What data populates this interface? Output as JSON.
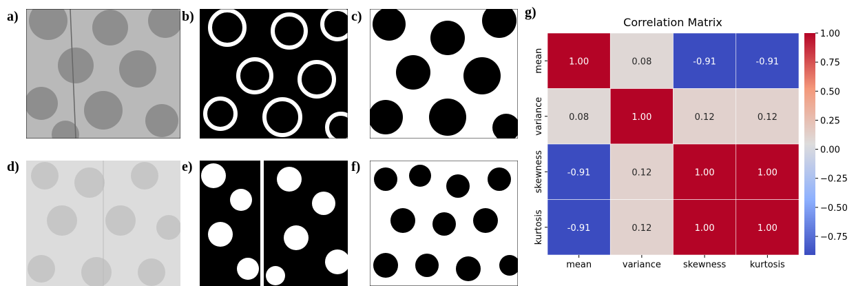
{
  "panel_labels": [
    "a)",
    "b)",
    "c)",
    "d)",
    "e)",
    "f)",
    "g)"
  ],
  "chart_data": {
    "type": "heatmap",
    "title": "Correlation Matrix",
    "x_categories": [
      "mean",
      "variance",
      "skewness",
      "kurtosis"
    ],
    "y_categories": [
      "mean",
      "variance",
      "skewness",
      "kurtosis"
    ],
    "values": [
      [
        1,
        0.08,
        -0.91,
        -0.91
      ],
      [
        0.08,
        1,
        0.12,
        0.12
      ],
      [
        -0.91,
        0.12,
        1,
        1
      ],
      [
        -0.91,
        0.12,
        1,
        1
      ]
    ],
    "value_labels": [
      [
        "1.00",
        "0.08",
        "-0.91",
        "-0.91"
      ],
      [
        "0.08",
        "1.00",
        "0.12",
        "0.12"
      ],
      [
        "-0.91",
        "0.12",
        "1.00",
        "1.00"
      ],
      [
        "-0.91",
        "0.12",
        "1.00",
        "1.00"
      ]
    ],
    "colormap": "coolwarm",
    "clim": [
      -0.91,
      1
    ],
    "cticks": [
      {
        "value": 1,
        "label": "1.00"
      },
      {
        "value": 0.75,
        "label": "0.75"
      },
      {
        "value": 0.5,
        "label": "0.50"
      },
      {
        "value": 0.25,
        "label": "0.25"
      },
      {
        "value": 0,
        "label": "0.00"
      },
      {
        "value": -0.25,
        "label": "−0.25"
      },
      {
        "value": -0.5,
        "label": "−0.50"
      },
      {
        "value": -0.75,
        "label": "−0.75"
      }
    ]
  }
}
